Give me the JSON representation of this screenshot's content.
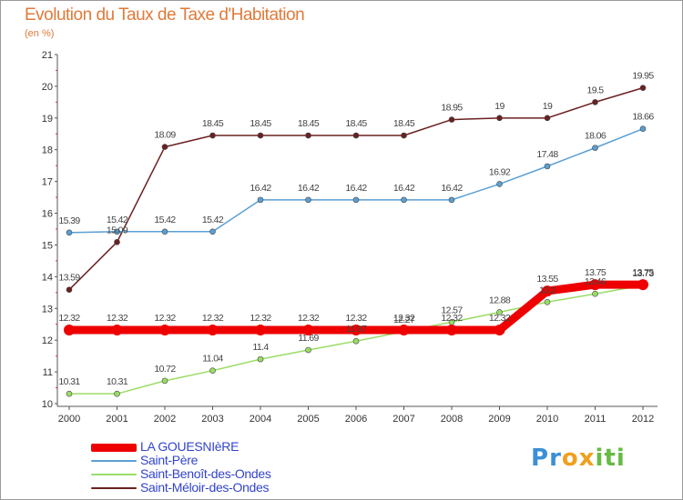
{
  "chart_data": {
    "type": "line",
    "title": "Evolution du Taux de Taxe d'Habitation",
    "unit": "(en %)",
    "x": [
      "2000",
      "2001",
      "2002",
      "2003",
      "2004",
      "2005",
      "2006",
      "2007",
      "2008",
      "2009",
      "2010",
      "2011",
      "2012"
    ],
    "ylim": [
      10,
      21
    ],
    "yticks": [
      "10",
      "11",
      "12",
      "13",
      "14",
      "15",
      "16",
      "17",
      "18",
      "19",
      "20",
      "21"
    ],
    "grid": false,
    "legend_position": "bottom-left",
    "series": [
      {
        "name": "LA GOUESNIèRE",
        "color": "#ee0000",
        "values": [
          12.32,
          12.32,
          12.32,
          12.32,
          12.32,
          12.32,
          12.32,
          12.32,
          12.32,
          12.32,
          13.55,
          13.75,
          13.75
        ],
        "labels": [
          "12.32",
          "12.32",
          "12.32",
          "12.32",
          "12.32",
          "12.32",
          "12.32",
          "12.32",
          "12.32",
          "12.32",
          "13.55",
          "13.75",
          "13.75"
        ]
      },
      {
        "name": "Saint-Père",
        "color": "#5a9fd4",
        "values": [
          15.39,
          15.42,
          15.42,
          15.42,
          16.42,
          16.42,
          16.42,
          16.42,
          16.42,
          16.92,
          17.48,
          18.06,
          18.66
        ],
        "labels": [
          "15.39",
          "15.42",
          "15.42",
          "15.42",
          "16.42",
          "16.42",
          "16.42",
          "16.42",
          "16.42",
          "16.92",
          "17.48",
          "18.06",
          "18.66"
        ]
      },
      {
        "name": "Saint-Benoît-des-Ondes",
        "color": "#99dd66",
        "values": [
          10.31,
          10.31,
          10.72,
          11.04,
          11.4,
          11.69,
          11.97,
          12.27,
          12.57,
          12.88,
          13.2,
          13.46,
          13.73
        ],
        "labels": [
          "10.31",
          "10.31",
          "10.72",
          "11.04",
          "11.4",
          "11.69",
          "11.97",
          "12.27",
          "12.57",
          "12.88",
          "13.2",
          "13.46",
          "13.73"
        ]
      },
      {
        "name": "Saint-Méloir-des-Ondes",
        "color": "#6b2020",
        "values": [
          13.59,
          15.09,
          18.09,
          18.45,
          18.45,
          18.45,
          18.45,
          18.45,
          18.95,
          19.0,
          19.0,
          19.5,
          19.95
        ],
        "labels": [
          "13.59",
          "15.09",
          "18.09",
          "18.45",
          "18.45",
          "18.45",
          "18.45",
          "18.45",
          "18.95",
          "19",
          "19",
          "19.5",
          "19.95"
        ]
      }
    ]
  },
  "logo": {
    "letters": [
      "P",
      "r",
      "o",
      "x",
      "i",
      "t",
      "i"
    ],
    "colors": [
      "#3b8fd6",
      "#3b8fd6",
      "#f0a020",
      "#f0a020",
      "#66bb44",
      "#66bb44",
      "#66bb44"
    ]
  }
}
